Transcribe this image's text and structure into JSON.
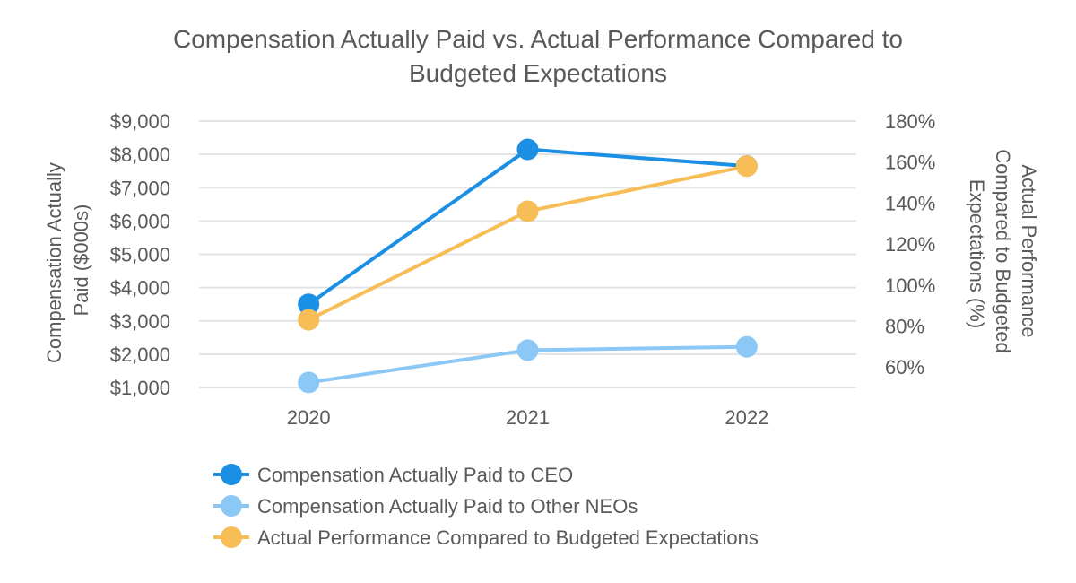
{
  "chart_data": {
    "type": "line",
    "title_lines": [
      "Compensation Actually Paid vs. Actual Performance Compared to",
      "Budgeted Expectations"
    ],
    "categories": [
      "2020",
      "2021",
      "2022"
    ],
    "y_left": {
      "title_lines": [
        "Compensation Actually",
        "Paid ($000s)"
      ],
      "range": [
        1000,
        9000
      ],
      "ticks": [
        1000,
        2000,
        3000,
        4000,
        5000,
        6000,
        7000,
        8000,
        9000
      ],
      "tick_labels": [
        "$1,000",
        "$2,000",
        "$3,000",
        "$4,000",
        "$5,000",
        "$6,000",
        "$7,000",
        "$8,000",
        "$9,000"
      ]
    },
    "y_right": {
      "title_lines": [
        "Actual Performance",
        "Compared to Budgeted",
        "Expectations (%)"
      ],
      "range": [
        50,
        180
      ],
      "ticks": [
        60,
        80,
        100,
        120,
        140,
        160,
        180
      ],
      "tick_labels": [
        "60%",
        "80%",
        "100%",
        "120%",
        "140%",
        "160%",
        "180%"
      ]
    },
    "grid": true,
    "legend_position": "bottom",
    "series": [
      {
        "name": "Compensation Actually Paid to CEO",
        "axis": "left",
        "color": "#1a8fe3",
        "values": [
          3500,
          8150,
          7650
        ]
      },
      {
        "name": "Compensation Actually Paid to Other NEOs",
        "axis": "left",
        "color": "#8cc8f6",
        "values": [
          1150,
          2120,
          2220
        ]
      },
      {
        "name": "Actual Performance Compared to Budgeted Expectations",
        "axis": "right",
        "color": "#f7bd56",
        "values": [
          83,
          136,
          158
        ]
      }
    ]
  }
}
